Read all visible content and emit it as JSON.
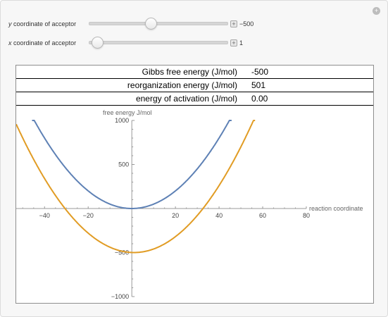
{
  "controls": {
    "y_slider": {
      "label_var": "y",
      "label_rest": "coordinate of acceptor",
      "value_text": "−500",
      "fraction": 0.44
    },
    "x_slider": {
      "label_var": "x",
      "label_rest": "coordinate of acceptor",
      "value_text": "1",
      "fraction": 0.02
    }
  },
  "table": [
    {
      "name": "Gibbs free energy (J/mol)",
      "value": "-500"
    },
    {
      "name": "reorganization energy (J/mol)",
      "value": "501"
    },
    {
      "name": "energy of activation (J/mol)",
      "value": "0.00"
    }
  ],
  "chart_data": {
    "type": "line",
    "ylabel": "free energy J/mol",
    "xlabel": "reaction coordinate",
    "xlim": [
      -53,
      80
    ],
    "ylim": [
      -1000,
      1000
    ],
    "x_ticks": [
      "-40",
      "-20",
      "20",
      "40",
      "60",
      "80"
    ],
    "y_ticks": [
      "1000",
      "500",
      "-500",
      "-1000"
    ],
    "series": [
      {
        "formula": "y = 0.5*x^2",
        "shift": 0,
        "offset": 0,
        "color": "#5e81b5"
      },
      {
        "formula": "y = 0.5*(x-1)^2 - 500",
        "shift": 1,
        "offset": -500,
        "color": "#e19c24"
      }
    ]
  }
}
